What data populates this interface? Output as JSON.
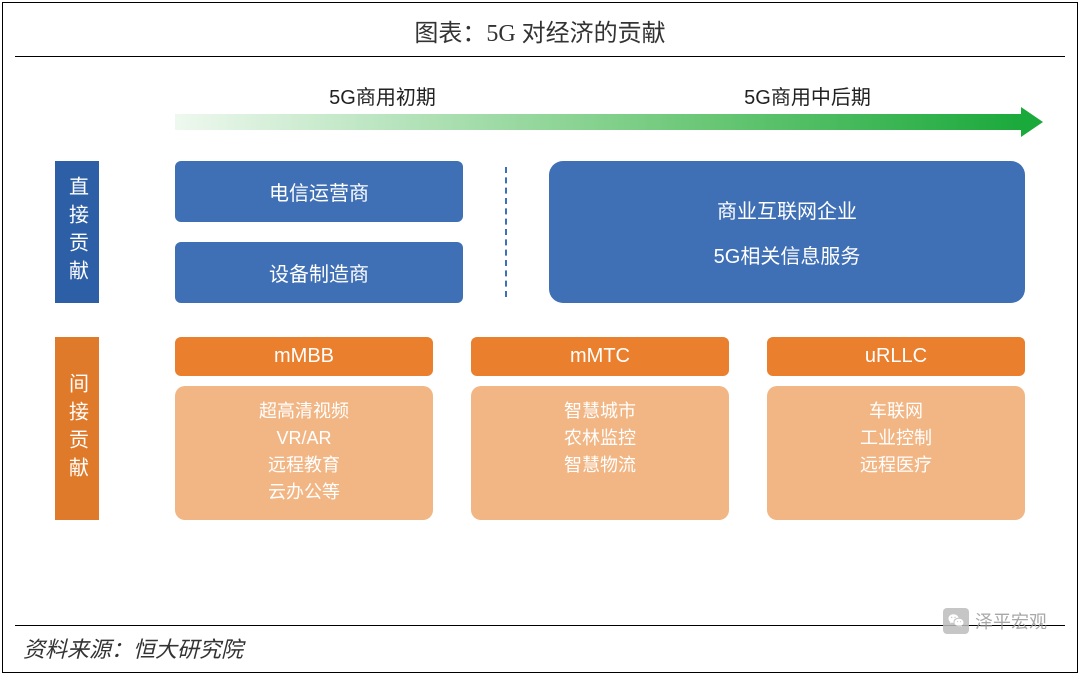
{
  "title": "图表：5G 对经济的贡献",
  "timeline": {
    "left_label": "5G商用初期",
    "right_label": "5G商用中后期",
    "gradient_start": "#eef8ef",
    "gradient_mid": "#6fc97a",
    "gradient_end": "#1aa93b"
  },
  "colors": {
    "blue_label": "#2d5fa6",
    "blue_box": "#3f6fb5",
    "orange_label": "#e07a2b",
    "orange_head": "#ea7f2d",
    "orange_body": "#f2b684",
    "text_white": "#ffffff"
  },
  "direct": {
    "label": "直接贡献",
    "left_boxes": [
      "电信运营商",
      "设备制造商"
    ],
    "right_lines": [
      "商业互联网企业",
      "5G相关信息服务"
    ]
  },
  "indirect": {
    "label": "间接贡献",
    "columns": [
      {
        "head": "mMBB",
        "body": "超高清视频\nVR/AR\n远程教育\n云办公等"
      },
      {
        "head": "mMTC",
        "body": "智慧城市\n农林监控\n智慧物流"
      },
      {
        "head": "uRLLC",
        "body": "车联网\n工业控制\n远程医疗"
      }
    ]
  },
  "source": "资料来源：恒大研究院",
  "watermark": "泽平宏观"
}
